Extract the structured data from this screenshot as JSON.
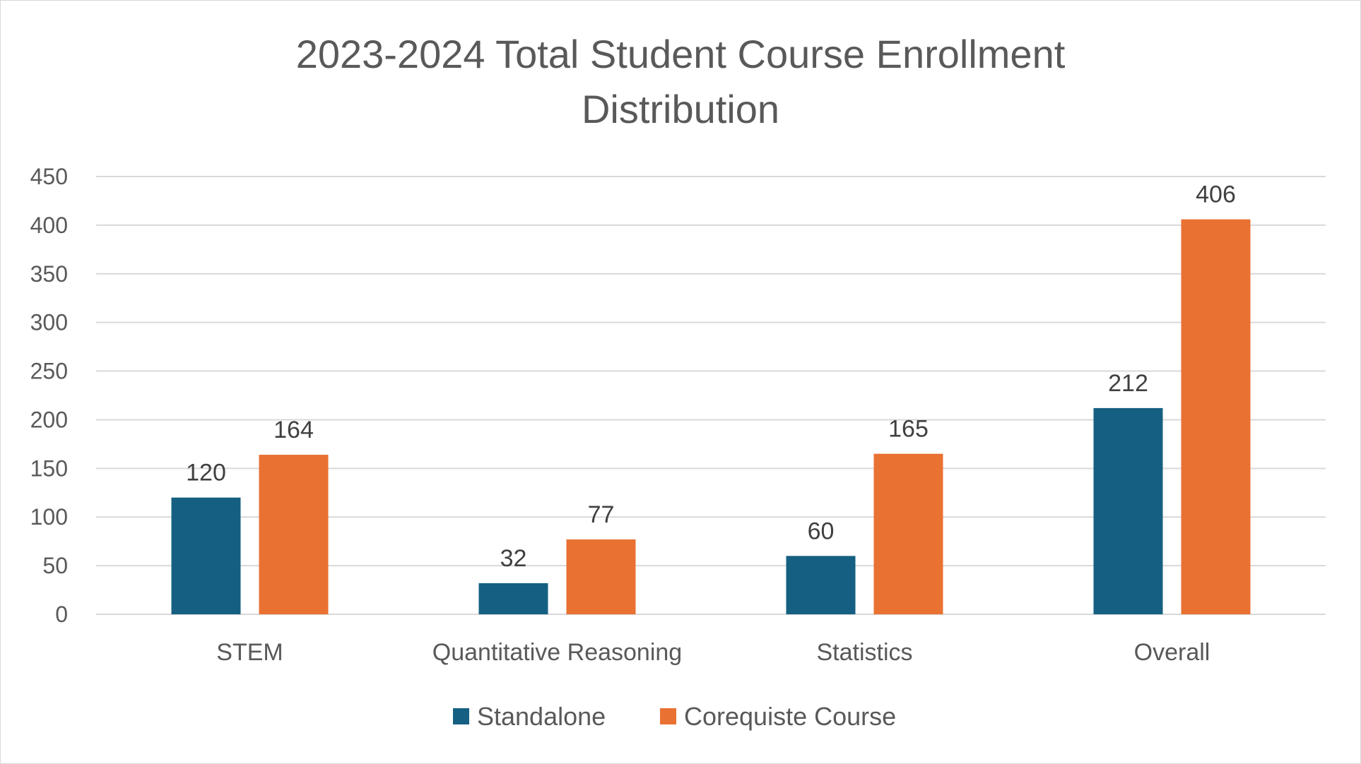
{
  "chart_data": {
    "type": "bar",
    "title": "2023-2024 Total Student Course Enrollment Distribution",
    "title_lines": [
      "2023-2024 Total Student Course Enrollment",
      "Distribution"
    ],
    "categories": [
      "STEM",
      "Quantitative Reasoning",
      "Statistics",
      "Overall"
    ],
    "series": [
      {
        "name": "Standalone",
        "color": "#156082",
        "values": [
          120,
          32,
          60,
          212
        ]
      },
      {
        "name": "Corequiste Course",
        "color": "#E97132",
        "values": [
          164,
          77,
          165,
          406
        ]
      }
    ],
    "xlabel": "",
    "ylabel": "",
    "ylim": [
      0,
      450
    ],
    "yticks": [
      0,
      50,
      100,
      150,
      200,
      250,
      300,
      350,
      400,
      450
    ],
    "grid": true,
    "legend_position": "bottom"
  }
}
